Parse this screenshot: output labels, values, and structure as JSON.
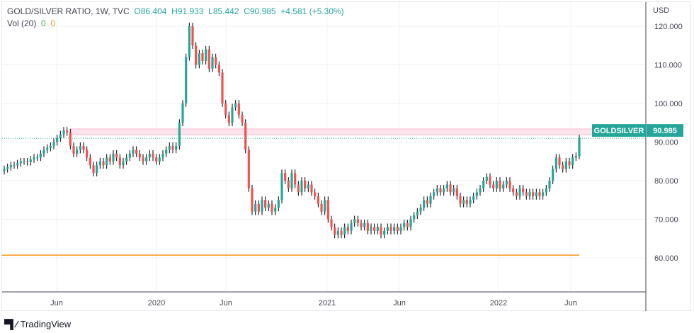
{
  "legend": {
    "symbol": "GOLD/SILVER RATIO, 1W, TVC",
    "open": "O86.404",
    "high": "H91.933",
    "low": "L85.442",
    "close": "C90.985",
    "change": "+4.581 (+5.30%)",
    "vol_label": "Vol (20)",
    "vol_a": "0",
    "vol_b": "0"
  },
  "price_tag": {
    "name": "GOLDSILVER",
    "value": "90.985"
  },
  "footer": {
    "brand": "TradingView"
  },
  "colors": {
    "up": "#26a69a",
    "down": "#ef5350",
    "band": "#fce4ec",
    "hline": "#f7931a"
  },
  "chart_data": {
    "type": "candlestick",
    "currency": "USD",
    "ylim": [
      50,
      125
    ],
    "y_ticks": [
      60,
      70,
      80,
      90,
      100,
      110,
      120
    ],
    "y_tick_labels": [
      "60.000",
      "70.000",
      "80.000",
      "90.000",
      "100.000",
      "110.000",
      "120.000"
    ],
    "x_ticks": [
      "Jun",
      "2020",
      "Jun",
      "2021",
      "Jun",
      "2022",
      "Jun"
    ],
    "band": [
      91.9,
      93.4
    ],
    "horizontal_line": 60.7,
    "last_close": 90.985,
    "closes": [
      83,
      83.5,
      84,
      84,
      84.5,
      85,
      85,
      84.8,
      85.5,
      86,
      86,
      87,
      88,
      88.5,
      89,
      90,
      91,
      92,
      93,
      92.5,
      89,
      87,
      88,
      89,
      88,
      86,
      84,
      82,
      84,
      85,
      84,
      86,
      85,
      87,
      86,
      84,
      85,
      86,
      87,
      88,
      87,
      86,
      85,
      86,
      87,
      86,
      85,
      86,
      87,
      88,
      89,
      88,
      89,
      95,
      100,
      112,
      120,
      115,
      110,
      113,
      111,
      114,
      109,
      112,
      110,
      108,
      100,
      97,
      95,
      99,
      100,
      97,
      95,
      88,
      78,
      72,
      74,
      72,
      75,
      73,
      74,
      72,
      73,
      75,
      82,
      80,
      78,
      82,
      79,
      77,
      80,
      78,
      79,
      77,
      76,
      74,
      72,
      75,
      70,
      68,
      66,
      67,
      66,
      68,
      67,
      69,
      70,
      69,
      68,
      69,
      67,
      68,
      67,
      68,
      66,
      67,
      68,
      67,
      68,
      67,
      68,
      69,
      68,
      70,
      71,
      72,
      73,
      75,
      74,
      76,
      77,
      78,
      77,
      78,
      79,
      77,
      78,
      76,
      74,
      75,
      74,
      75,
      76,
      77,
      78,
      80,
      81,
      79,
      78,
      80,
      78,
      79,
      80,
      78,
      77,
      76,
      78,
      77,
      76,
      77,
      76,
      77,
      76,
      77,
      78,
      80,
      83,
      86,
      84,
      83,
      85,
      84,
      86,
      86.404,
      90.985
    ]
  }
}
